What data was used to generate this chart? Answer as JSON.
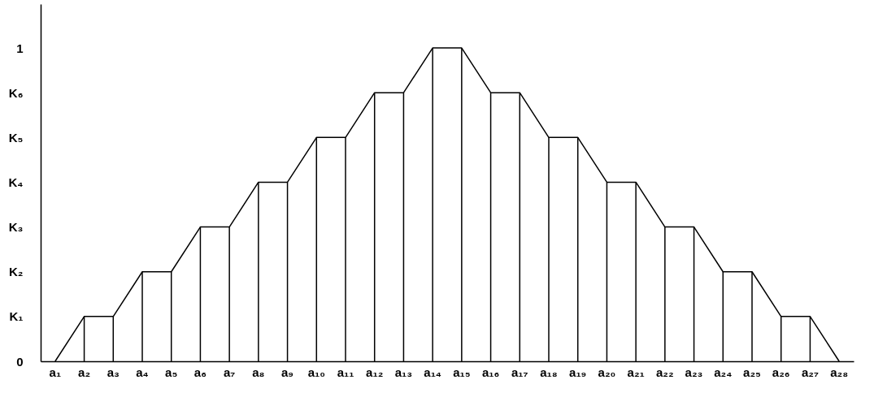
{
  "chart_data": {
    "type": "line",
    "categories": [
      "a₁",
      "a₂",
      "a₃",
      "a₄",
      "a₅",
      "a₆",
      "a₇",
      "a₈",
      "a₉",
      "a₁₀",
      "a₁₁",
      "a₁₂",
      "a₁₃",
      "a₁₄",
      "a₁₅",
      "a₁₆",
      "a₁₇",
      "a₁₈",
      "a₁₉",
      "a₂₀",
      "a₂₁",
      "a₂₂",
      "a₂₃",
      "a₂₄",
      "a₂₅",
      "a₂₆",
      "a₂₇",
      "a₂₈"
    ],
    "series": [
      {
        "type": "bar",
        "color": "#000000",
        "values": [
          0,
          0.1429,
          0.1429,
          0.2857,
          0.2857,
          0.4286,
          0.4286,
          0.5714,
          0.5714,
          0.7143,
          0.7143,
          0.8571,
          0.8571,
          1,
          1,
          0.8571,
          0.8571,
          0.7143,
          0.7143,
          0.5714,
          0.5714,
          0.4286,
          0.4286,
          0.2857,
          0.2857,
          0.1429,
          0.1429,
          0
        ]
      },
      {
        "color": "#000000",
        "values": [
          0,
          0.1429,
          0.1429,
          0.2857,
          0.2857,
          0.4286,
          0.4286,
          0.5714,
          0.5714,
          0.7143,
          0.7143,
          0.8571,
          0.8571,
          1,
          1,
          0.8571,
          0.8571,
          0.7143,
          0.7143,
          0.5714,
          0.5714,
          0.4286,
          0.4286,
          0.2857,
          0.2857,
          0.1429,
          0.1429,
          0
        ]
      }
    ],
    "ylim": [
      0,
      1.14
    ],
    "yticks": [
      0,
      {
        "value": 0.1429,
        "label": "K₁"
      },
      {
        "value": 0.2857,
        "label": "K₂"
      },
      {
        "value": 0.4286,
        "label": "K₃"
      },
      {
        "value": 0.5714,
        "label": "K₄"
      },
      {
        "value": 0.7143,
        "label": "K₅"
      },
      {
        "value": 0.8571,
        "label": "K₆"
      },
      1
    ],
    "grid": false,
    "marker": "none",
    "line_style": "solid"
  }
}
